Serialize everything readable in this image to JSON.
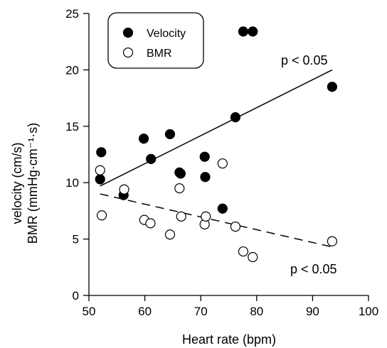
{
  "chart_data": {
    "type": "scatter",
    "xlabel": "Heart rate (bpm)",
    "ylabel_lines": [
      "velocity (cm/s)",
      "BMR (mmHg·cm⁻¹·s)"
    ],
    "xlim": [
      50,
      100
    ],
    "ylim": [
      0,
      25
    ],
    "xticks": [
      50,
      60,
      70,
      80,
      90,
      100
    ],
    "yticks": [
      0,
      5,
      10,
      15,
      20,
      25
    ],
    "grid": false,
    "legend_position": "top-left",
    "series": [
      {
        "name": "Velocity",
        "marker": "filled-circle",
        "color": "#000000",
        "x": [
          52.0,
          52.2,
          56.2,
          59.8,
          61.1,
          64.5,
          66.2,
          66.4,
          70.7,
          70.8,
          73.9,
          76.2,
          77.6,
          79.3,
          93.5
        ],
        "y": [
          10.3,
          12.7,
          8.9,
          13.9,
          12.1,
          14.3,
          10.9,
          10.8,
          12.3,
          10.5,
          7.7,
          15.8,
          23.4,
          23.4,
          18.5
        ]
      },
      {
        "name": "BMR",
        "marker": "open-circle",
        "color": "#000000",
        "x": [
          52.0,
          52.3,
          56.3,
          59.9,
          61.0,
          64.5,
          66.2,
          66.5,
          70.7,
          70.9,
          73.9,
          76.2,
          77.6,
          79.3,
          93.5
        ],
        "y": [
          11.1,
          7.1,
          9.4,
          6.7,
          6.4,
          5.4,
          9.5,
          7.0,
          6.3,
          7.0,
          11.7,
          6.1,
          3.9,
          3.4,
          4.8
        ]
      }
    ],
    "fit_lines": [
      {
        "series": "Velocity",
        "style": "solid",
        "x": [
          52.0,
          93.5
        ],
        "y": [
          9.7,
          20.0
        ],
        "label": "p < 0.05"
      },
      {
        "series": "BMR",
        "style": "dashed",
        "x": [
          52.0,
          93.5
        ],
        "y": [
          9.0,
          4.3
        ],
        "label": "p < 0.05"
      }
    ]
  }
}
